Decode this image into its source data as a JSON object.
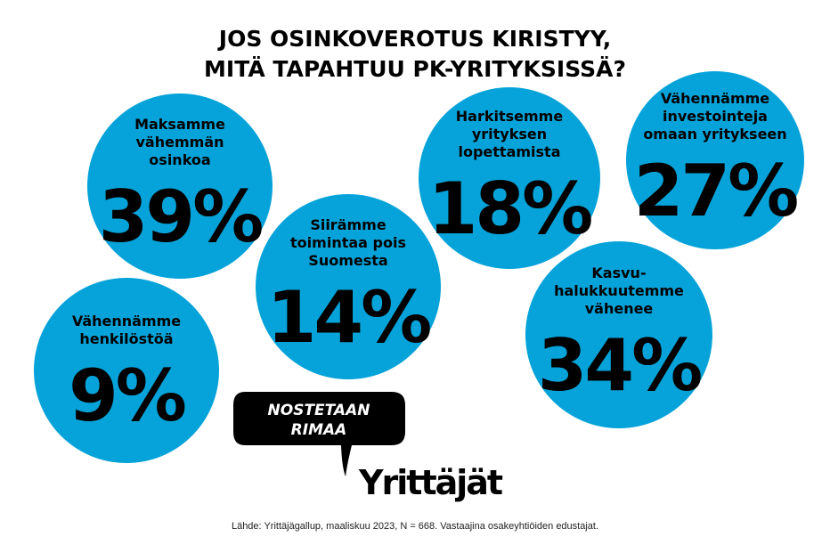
{
  "title_lines": [
    "JOS OSINKOVEROTUS KIRISTYY,",
    "MITÄ TAPAHTUU PK-YRITYKSISSÄ?"
  ],
  "chart_data": {
    "type": "bubble",
    "title": "JOS OSINKOVEROTUS KIRISTYY, MITÄ TAPAHTUU PK-YRITYKSISSÄ?",
    "unit": "%",
    "categories": [
      {
        "label_lines": [
          "Maksamme",
          "vähemmän",
          "osinkoa"
        ],
        "value": 39,
        "display": "39%"
      },
      {
        "label_lines": [
          "Vähennämme",
          "henkilöstöä"
        ],
        "value": 9,
        "display": "9%"
      },
      {
        "label_lines": [
          "Siirämme",
          "toimintaa pois",
          "Suomesta"
        ],
        "value": 14,
        "display": "14%"
      },
      {
        "label_lines": [
          "Harkitsemme",
          "yrityksen",
          "lopettamista"
        ],
        "value": 18,
        "display": "18%"
      },
      {
        "label_lines": [
          "Vähennämme",
          "investointeja",
          "omaan yritykseen"
        ],
        "value": 27,
        "display": "27%"
      },
      {
        "label_lines": [
          "Kasvu-",
          "halukkuutemme",
          "vähenee"
        ],
        "value": 34,
        "display": "34%"
      }
    ],
    "bubble_color": "#05a3d9"
  },
  "logo": {
    "slogan_lines": [
      "NOSTETAAN",
      "RIMAA"
    ],
    "brand": "Yrittäjät"
  },
  "footer": "Lähde: Yrittäjägallup, maaliskuu 2023, N = 668. Vastaajina osakeyhtiöiden edustajat."
}
